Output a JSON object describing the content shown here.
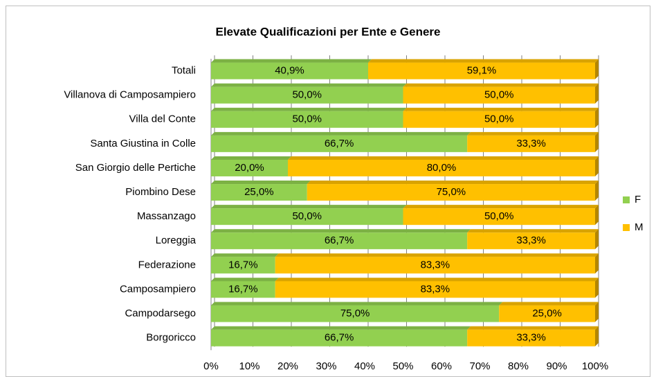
{
  "chart_data": {
    "type": "stacked_bar_horizontal",
    "title": "Elevate Qualificazioni per Ente e Genere",
    "categories": [
      "Totali",
      "Villanova di Camposampiero",
      "Villa del Conte",
      "Santa Giustina in Colle",
      "San Giorgio delle Pertiche",
      "Piombino Dese",
      "Massanzago",
      "Loreggia",
      "Federazione",
      "Camposampiero",
      "Campodarsego",
      "Borgoricco"
    ],
    "series": [
      {
        "name": "F",
        "color": "#92d050",
        "values": [
          40.9,
          50,
          50,
          66.7,
          20,
          25,
          50,
          66.7,
          16.7,
          16.7,
          75,
          66.7
        ],
        "value_labels": [
          "40,9%",
          "50,0%",
          "50,0%",
          "66,7%",
          "20,0%",
          "25,0%",
          "50,0%",
          "66,7%",
          "16,7%",
          "16,7%",
          "75,0%",
          "66,7%"
        ]
      },
      {
        "name": "M",
        "color": "#ffc000",
        "values": [
          59.1,
          50,
          50,
          33.3,
          80,
          75,
          50,
          33.3,
          83.3,
          83.3,
          25,
          33.3
        ],
        "value_labels": [
          "59,1%",
          "50,0%",
          "50,0%",
          "33,3%",
          "80,0%",
          "75,0%",
          "50,0%",
          "33,3%",
          "83,3%",
          "83,3%",
          "25,0%",
          "33,3%"
        ]
      }
    ],
    "xlim": [
      0,
      100
    ],
    "xticks": [
      {
        "value": 0,
        "label": "0%"
      },
      {
        "value": 10,
        "label": "10%"
      },
      {
        "value": 20,
        "label": "20%"
      },
      {
        "value": 30,
        "label": "30%"
      },
      {
        "value": 40,
        "label": "40%"
      },
      {
        "value": 50,
        "label": "50%"
      },
      {
        "value": 60,
        "label": "60%"
      },
      {
        "value": 70,
        "label": "70%"
      },
      {
        "value": 80,
        "label": "80%"
      },
      {
        "value": 90,
        "label": "90%"
      },
      {
        "value": 100,
        "label": "100%"
      }
    ],
    "grid": true,
    "legend": "right"
  }
}
